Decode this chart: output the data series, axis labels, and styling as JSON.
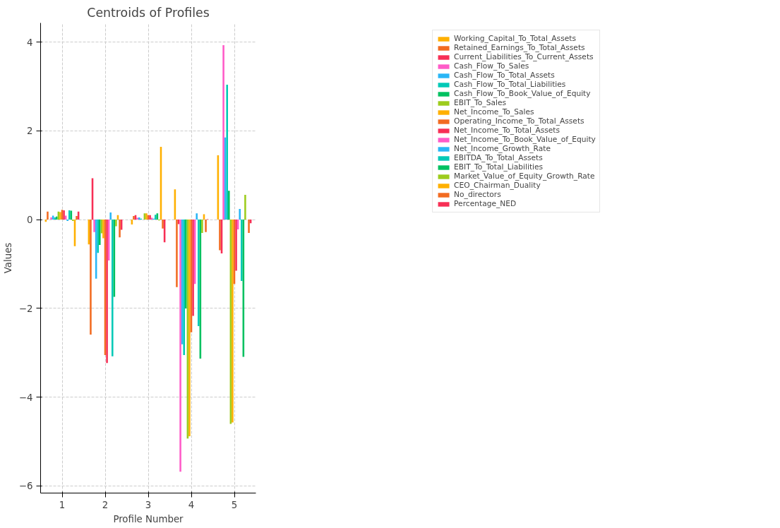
{
  "chart_data": {
    "type": "bar",
    "title": "Centroids of Profiles",
    "xlabel": "Profile Number",
    "ylabel": "Values",
    "x": [
      1,
      2,
      3,
      4,
      5
    ],
    "xlim": [
      0.5,
      5.5
    ],
    "xticks": [
      1,
      2,
      3,
      4,
      5
    ],
    "ylim": [
      -6.16,
      4.43
    ],
    "yticks": [
      -6,
      -4,
      -2,
      0,
      2,
      4
    ],
    "grid": true,
    "legend": "top right",
    "series": [
      {
        "name": "Working_Capital_To_Total_Assets",
        "color": "#ffb000",
        "values": [
          -0.05,
          -0.56,
          -0.11,
          0.68,
          1.45
        ]
      },
      {
        "name": "Retained_Earnings_To_Total_Assets",
        "color": "#f26b21",
        "values": [
          0.18,
          -2.59,
          0.08,
          -1.52,
          -0.69
        ]
      },
      {
        "name": "Current_Liabilities_To_Current_Assets",
        "color": "#f72f55",
        "values": [
          0.0,
          0.93,
          0.1,
          -0.1,
          -0.76
        ]
      },
      {
        "name": "Cash_Flow_To_Sales",
        "color": "#ff5bc8",
        "values": [
          0.05,
          -0.28,
          0.04,
          -5.68,
          3.93
        ]
      },
      {
        "name": "Cash_Flow_To_Total_Assets",
        "color": "#29b6f6",
        "values": [
          0.09,
          -1.33,
          0.05,
          -2.81,
          1.85
        ]
      },
      {
        "name": "Cash_Flow_To_Total_Liabilities",
        "color": "#00c9b7",
        "values": [
          0.05,
          -0.75,
          0.02,
          -3.05,
          3.04
        ]
      },
      {
        "name": "Cash_Flow_To_Book_Value_of_Equity",
        "color": "#00c160",
        "values": [
          0.07,
          -0.57,
          0.0,
          -2.0,
          0.65
        ]
      },
      {
        "name": "EBIT_To_Sales",
        "color": "#9dcc1d",
        "values": [
          0.18,
          -0.31,
          0.14,
          -4.93,
          -4.6
        ]
      },
      {
        "name": "Net_Income_To_Sales",
        "color": "#ffb000",
        "values": [
          0.17,
          -0.42,
          0.14,
          -4.88,
          -4.57
        ]
      },
      {
        "name": "Operating_Income_To_Total_Assets",
        "color": "#f26b21",
        "values": [
          0.22,
          -3.05,
          0.1,
          -2.54,
          -1.45
        ]
      },
      {
        "name": "Net_Income_To_Total_Assets",
        "color": "#f72f55",
        "values": [
          0.21,
          -3.23,
          0.1,
          -2.17,
          -1.15
        ]
      },
      {
        "name": "Net_Income_To_Book_Value_of_Equity",
        "color": "#ff5bc8",
        "values": [
          0.09,
          -0.92,
          0.04,
          -1.45,
          -0.22
        ]
      },
      {
        "name": "Net_Income_Growth_Rate",
        "color": "#29b6f6",
        "values": [
          -0.03,
          0.16,
          0.02,
          0.14,
          0.24
        ]
      },
      {
        "name": "EBITDA_To_Total_Assets",
        "color": "#00c9b7",
        "values": [
          0.21,
          -3.08,
          0.11,
          -2.4,
          -1.38
        ]
      },
      {
        "name": "EBIT_To_Total_Liabilities",
        "color": "#00c160",
        "values": [
          0.2,
          -1.74,
          0.14,
          -3.13,
          -3.09
        ]
      },
      {
        "name": "Market_Value_of_Equity_Growth_Rate",
        "color": "#9dcc1d",
        "values": [
          -0.03,
          -0.15,
          -0.02,
          -0.3,
          0.56
        ]
      },
      {
        "name": "CEO_Chairman_Duality",
        "color": "#ffb000",
        "values": [
          -0.6,
          0.1,
          1.64,
          0.12,
          0.0
        ]
      },
      {
        "name": "No_directors",
        "color": "#f26b21",
        "values": [
          0.08,
          -0.4,
          -0.2,
          -0.28,
          -0.3
        ]
      },
      {
        "name": "Percentage_NED",
        "color": "#f72f55",
        "values": [
          0.18,
          -0.23,
          -0.51,
          0.01,
          -0.08
        ]
      }
    ]
  }
}
